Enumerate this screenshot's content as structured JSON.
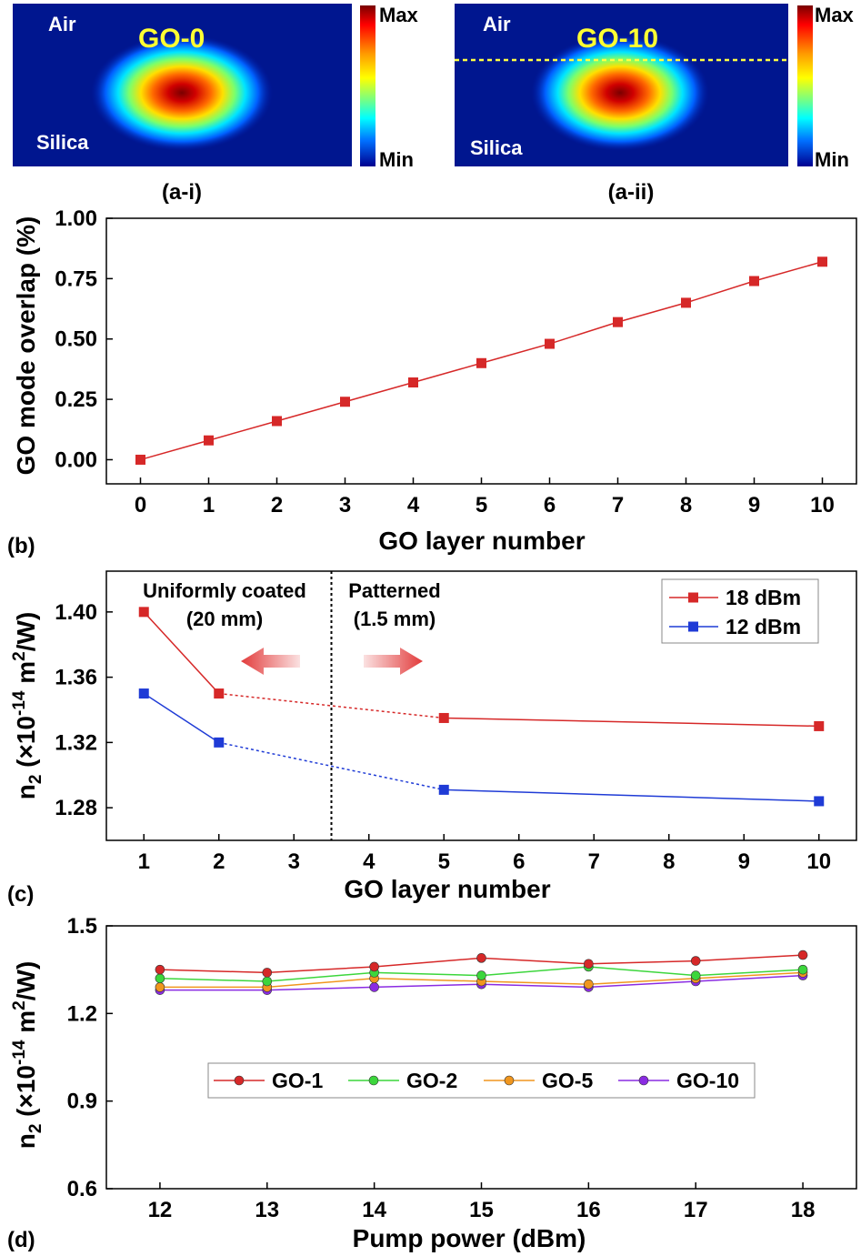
{
  "chart_data": [
    {
      "panel": "(a-i)",
      "type": "heatmap",
      "title": "GO-0",
      "region_labels": [
        "Air",
        "Silica"
      ],
      "colorbar": {
        "max_label": "Max",
        "min_label": "Min"
      },
      "has_go_boundary_line": false
    },
    {
      "panel": "(a-ii)",
      "type": "heatmap",
      "title": "GO-10",
      "region_labels": [
        "Air",
        "Silica"
      ],
      "colorbar": {
        "max_label": "Max",
        "min_label": "Min"
      },
      "has_go_boundary_line": true
    },
    {
      "panel": "(b)",
      "type": "line",
      "xlabel": "GO layer number",
      "ylabel": "GO mode overlap (%)",
      "xlim": [
        -0.5,
        10.5
      ],
      "ylim": [
        -0.1,
        1.0
      ],
      "xticks": [
        "0",
        "1",
        "2",
        "3",
        "4",
        "5",
        "6",
        "7",
        "8",
        "9",
        "10"
      ],
      "yticks": [
        "0.00",
        "0.25",
        "0.50",
        "0.75",
        "1.00"
      ],
      "x": [
        0,
        1,
        2,
        3,
        4,
        5,
        6,
        7,
        8,
        9,
        10
      ],
      "series": [
        {
          "values": [
            0.0,
            0.08,
            0.16,
            0.24,
            0.32,
            0.4,
            0.48,
            0.57,
            0.65,
            0.74,
            0.82
          ],
          "color": "#d62828"
        }
      ]
    },
    {
      "panel": "(c)",
      "type": "line",
      "xlabel": "GO layer number",
      "ylabel_main": "n",
      "ylabel_sub": "2",
      "ylabel_rest": " (×10",
      "ylabel_exp1": "-14",
      "ylabel_unit": " m",
      "ylabel_exp2": "2",
      "ylabel_end": "/W)",
      "xlim": [
        0.5,
        10.5
      ],
      "ylim": [
        1.26,
        1.425
      ],
      "xticks": [
        "1",
        "2",
        "3",
        "4",
        "5",
        "6",
        "7",
        "8",
        "9",
        "10"
      ],
      "yticks": [
        "1.28",
        "1.32",
        "1.36",
        "1.40"
      ],
      "divider_x": 3.5,
      "annotations": {
        "left_title": "Uniformly coated",
        "left_sub": "(20 mm)",
        "right_title": "Patterned",
        "right_sub": "(1.5 mm)"
      },
      "legend_position": "top-right",
      "series": [
        {
          "name": "18 dBm",
          "color": "#d62828",
          "x": [
            1,
            2,
            5,
            10
          ],
          "values": [
            1.4,
            1.35,
            1.335,
            1.33
          ],
          "dashed_between": [
            2,
            5
          ]
        },
        {
          "name": "12 dBm",
          "color": "#1f3bd6",
          "x": [
            1,
            2,
            5,
            10
          ],
          "values": [
            1.35,
            1.32,
            1.291,
            1.284
          ],
          "dashed_between": [
            2,
            5
          ]
        }
      ]
    },
    {
      "panel": "(d)",
      "type": "line",
      "xlabel": "Pump power (dBm)",
      "ylabel_main": "n",
      "ylabel_sub": "2",
      "ylabel_rest": " (×10",
      "ylabel_exp1": "-14",
      "ylabel_unit": " m",
      "ylabel_exp2": "2",
      "ylabel_end": "/W)",
      "xlim": [
        11.5,
        18.5
      ],
      "ylim": [
        0.6,
        1.5
      ],
      "xticks": [
        "12",
        "13",
        "14",
        "15",
        "16",
        "17",
        "18"
      ],
      "yticks": [
        "0.6",
        "0.9",
        "1.2",
        "1.5"
      ],
      "legend_position": "center",
      "x": [
        12,
        13,
        14,
        15,
        16,
        17,
        18
      ],
      "series": [
        {
          "name": "GO-1",
          "color": "#d62828",
          "values": [
            1.35,
            1.34,
            1.36,
            1.39,
            1.37,
            1.38,
            1.4
          ]
        },
        {
          "name": "GO-2",
          "color": "#3cd63c",
          "values": [
            1.32,
            1.31,
            1.34,
            1.33,
            1.36,
            1.33,
            1.35
          ]
        },
        {
          "name": "GO-5",
          "color": "#f0961e",
          "values": [
            1.29,
            1.29,
            1.32,
            1.31,
            1.3,
            1.32,
            1.34
          ]
        },
        {
          "name": "GO-10",
          "color": "#8a2be2",
          "values": [
            1.28,
            1.28,
            1.29,
            1.3,
            1.29,
            1.31,
            1.33
          ]
        }
      ]
    }
  ]
}
